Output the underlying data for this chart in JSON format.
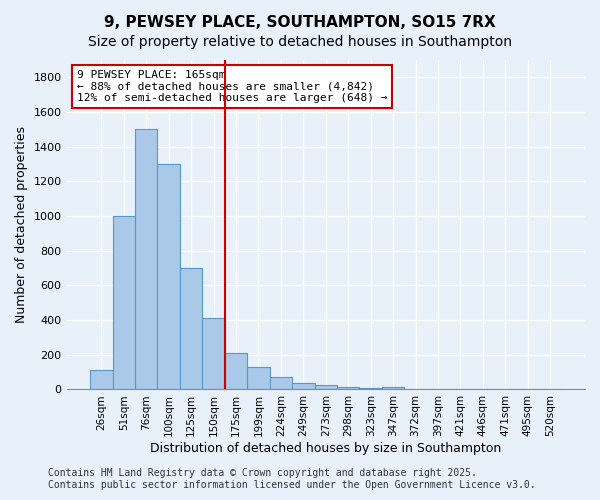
{
  "title_line1": "9, PEWSEY PLACE, SOUTHAMPTON, SO15 7RX",
  "title_line2": "Size of property relative to detached houses in Southampton",
  "xlabel": "Distribution of detached houses by size in Southampton",
  "ylabel": "Number of detached properties",
  "categories": [
    "26sqm",
    "51sqm",
    "76sqm",
    "100sqm",
    "125sqm",
    "150sqm",
    "175sqm",
    "199sqm",
    "224sqm",
    "249sqm",
    "273sqm",
    "298sqm",
    "323sqm",
    "347sqm",
    "372sqm",
    "397sqm",
    "421sqm",
    "446sqm",
    "471sqm",
    "495sqm",
    "520sqm"
  ],
  "values": [
    110,
    1000,
    1500,
    1300,
    700,
    410,
    210,
    130,
    70,
    40,
    25,
    15,
    8,
    12,
    5,
    2,
    1,
    1,
    0,
    0,
    0
  ],
  "bar_color": "#aac8e8",
  "bar_edgecolor": "#5599cc",
  "background_color": "#e8f0fa",
  "grid_color": "#ffffff",
  "vline_index": 5,
  "vline_color": "#cc0000",
  "annotation_line1": "9 PEWSEY PLACE: 165sqm",
  "annotation_line2": "← 88% of detached houses are smaller (4,842)",
  "annotation_line3": "12% of semi-detached houses are larger (648) →",
  "annotation_box_color": "#ffffff",
  "annotation_box_edgecolor": "#cc0000",
  "footnote": "Contains HM Land Registry data © Crown copyright and database right 2025.\nContains public sector information licensed under the Open Government Licence v3.0.",
  "ylim": [
    0,
    1900
  ],
  "yticks": [
    0,
    200,
    400,
    600,
    800,
    1000,
    1200,
    1400,
    1600,
    1800
  ],
  "title_fontsize": 11,
  "subtitle_fontsize": 10,
  "axis_label_fontsize": 9,
  "tick_fontsize": 7.5,
  "annotation_fontsize": 8,
  "footnote_fontsize": 7
}
